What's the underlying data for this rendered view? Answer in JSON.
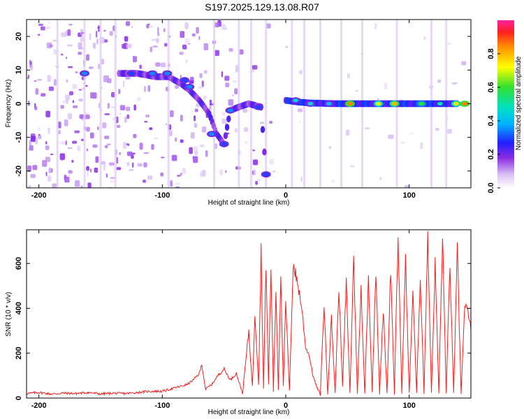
{
  "chart_data": [
    {
      "type": "heatmap",
      "title": "S197.2025.129.13.08.R07",
      "xlabel": "Height of straight line (km)",
      "ylabel": "Frequency (Hz)",
      "xlim": [
        -210,
        150
      ],
      "ylim": [
        -25,
        25
      ],
      "x_ticks": [
        -200,
        -100,
        0,
        100
      ],
      "y_ticks": [
        -20,
        -10,
        0,
        10,
        20
      ],
      "colorbar": {
        "label": "Normalized spectral amplitude",
        "range": [
          0,
          1
        ],
        "ticks": [
          "0.0",
          "0.2",
          "0.4",
          "0.6",
          "0.8"
        ],
        "colors": [
          "#ffffff",
          "#c9a8f0",
          "#8a2be2",
          "#2020ff",
          "#00c8ff",
          "#00e0a0",
          "#30e030",
          "#ffff00",
          "#ffa000",
          "#ff2020",
          "#ff20a0"
        ]
      },
      "ridge": [
        {
          "x": -135,
          "y": 9
        },
        {
          "x": -120,
          "y": 9
        },
        {
          "x": -105,
          "y": 8
        },
        {
          "x": -95,
          "y": 8
        },
        {
          "x": -85,
          "y": 6
        },
        {
          "x": -78,
          "y": 4
        },
        {
          "x": -70,
          "y": 1
        },
        {
          "x": -62,
          "y": -3
        },
        {
          "x": -56,
          "y": -9
        },
        {
          "x": -50,
          "y": -12
        },
        {
          "x": -45,
          "y": -2
        },
        {
          "x": -38,
          "y": -1
        },
        {
          "x": -30,
          "y": 0
        },
        {
          "x": -20,
          "y": -1
        },
        {
          "x": -16,
          "y": -21
        },
        {
          "x": 0,
          "y": 1
        },
        {
          "x": 10,
          "y": 0.5
        },
        {
          "x": 20,
          "y": 0.2
        },
        {
          "x": 40,
          "y": 0
        },
        {
          "x": 60,
          "y": 0
        },
        {
          "x": 80,
          "y": 0
        },
        {
          "x": 100,
          "y": 0
        },
        {
          "x": 120,
          "y": 0
        },
        {
          "x": 140,
          "y": 0
        }
      ],
      "hotspots": [
        {
          "x": -163,
          "y": 9,
          "amp": 0.35
        },
        {
          "x": -125,
          "y": 9,
          "amp": 0.3
        },
        {
          "x": -108,
          "y": 9,
          "amp": 0.35
        },
        {
          "x": -96,
          "y": 9,
          "amp": 0.35
        },
        {
          "x": -82,
          "y": 7,
          "amp": 0.3
        },
        {
          "x": -78,
          "y": 5,
          "amp": 0.35
        },
        {
          "x": -60,
          "y": -9,
          "amp": 0.35
        },
        {
          "x": -50,
          "y": -12,
          "amp": 0.3
        },
        {
          "x": -45,
          "y": -2,
          "amp": 0.35
        },
        {
          "x": -22,
          "y": -1,
          "amp": 0.3
        },
        {
          "x": -16,
          "y": -21,
          "amp": 0.3
        },
        {
          "x": 8,
          "y": 1,
          "amp": 0.45
        },
        {
          "x": 20,
          "y": 0,
          "amp": 0.45
        },
        {
          "x": 35,
          "y": 0,
          "amp": 0.4
        },
        {
          "x": 52,
          "y": 0,
          "amp": 0.85
        },
        {
          "x": 75,
          "y": 0,
          "amp": 0.7
        },
        {
          "x": 88,
          "y": 0,
          "amp": 0.8
        },
        {
          "x": 110,
          "y": 0,
          "amp": 0.6
        },
        {
          "x": 125,
          "y": 0,
          "amp": 0.5
        },
        {
          "x": 138,
          "y": 0,
          "amp": 0.75
        },
        {
          "x": 145,
          "y": 0,
          "amp": 0.85
        }
      ]
    },
    {
      "type": "line",
      "title": "",
      "xlabel": "Height of straight line (km)",
      "ylabel": "SNR (10 * v/v)",
      "xlim": [
        -210,
        150
      ],
      "ylim": [
        0,
        750
      ],
      "x_ticks": [
        -200,
        -100,
        0,
        100
      ],
      "y_ticks": [
        0,
        200,
        400,
        600
      ],
      "color": "#ee2222",
      "series": [
        {
          "x": [
            -210,
            -200,
            -190,
            -180,
            -170,
            -160,
            -150,
            -140,
            -130,
            -120,
            -110,
            -100,
            -90,
            -80,
            -75,
            -70,
            -68,
            -65,
            -60,
            -55,
            -50,
            -45,
            -40,
            -35,
            -30,
            -27,
            -25,
            -22,
            -20,
            -18,
            -16,
            -14,
            -12,
            -10,
            -8,
            -6,
            -4,
            -2,
            0,
            3,
            6,
            10,
            13,
            16,
            19,
            22,
            25,
            28,
            31,
            34,
            37,
            40,
            43,
            46,
            49,
            52,
            55,
            58,
            61,
            64,
            67,
            70,
            73,
            76,
            79,
            82,
            85,
            88,
            91,
            94,
            97,
            100,
            103,
            106,
            109,
            112,
            115,
            118,
            121,
            124,
            127,
            130,
            133,
            136,
            139,
            142,
            145,
            148,
            150
          ],
          "y": [
            20,
            25,
            18,
            22,
            20,
            25,
            18,
            22,
            20,
            25,
            30,
            30,
            45,
            60,
            80,
            110,
            150,
            40,
            60,
            100,
            130,
            80,
            110,
            20,
            300,
            50,
            380,
            60,
            660,
            40,
            600,
            60,
            580,
            30,
            480,
            40,
            560,
            50,
            420,
            30,
            600,
            500,
            400,
            230,
            190,
            100,
            50,
            15,
            420,
            20,
            360,
            20,
            500,
            50,
            520,
            20,
            630,
            20,
            490,
            20,
            540,
            30,
            560,
            20,
            400,
            20,
            580,
            20,
            720,
            20,
            620,
            20,
            480,
            20,
            550,
            20,
            740,
            20,
            600,
            20,
            720,
            20,
            600,
            20,
            660,
            20,
            410,
            380,
            300
          ]
        }
      ]
    }
  ]
}
